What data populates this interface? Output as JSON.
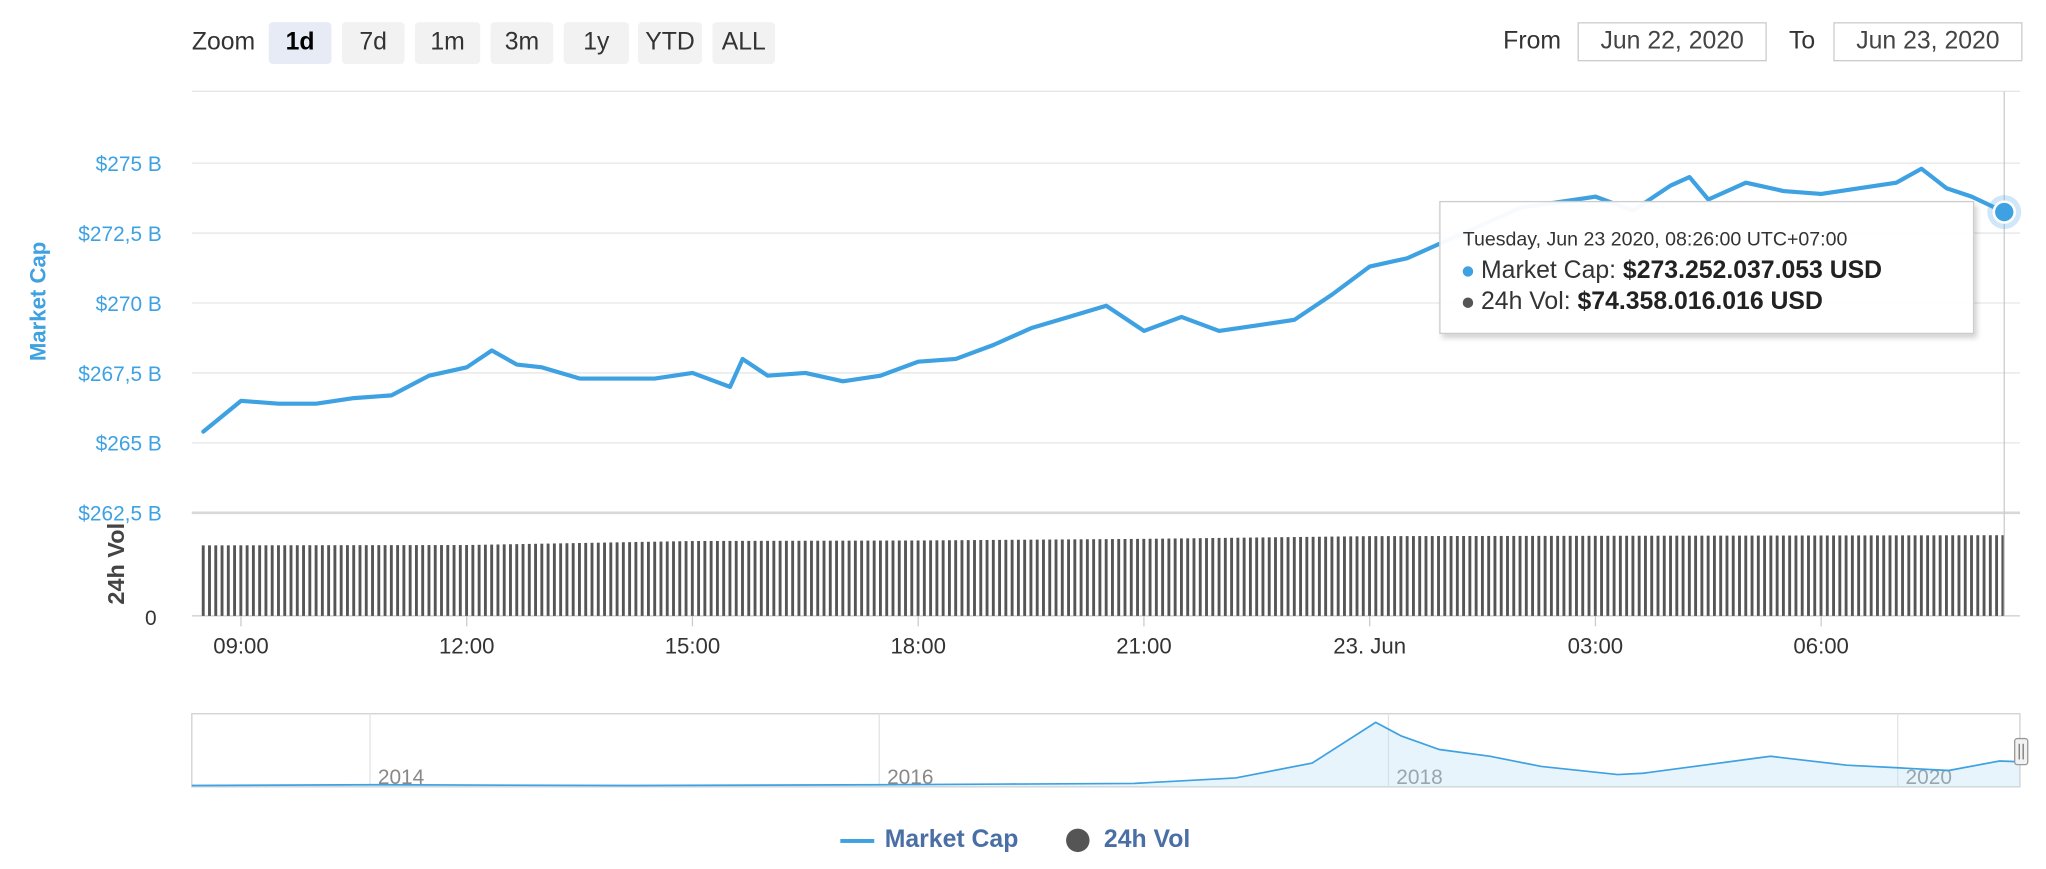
{
  "toolbar": {
    "zoom_label": "Zoom",
    "zoom_buttons": [
      {
        "label": "1d",
        "active": true
      },
      {
        "label": "7d",
        "active": false
      },
      {
        "label": "1m",
        "active": false
      },
      {
        "label": "3m",
        "active": false
      },
      {
        "label": "1y",
        "active": false
      },
      {
        "label": "YTD",
        "active": false
      },
      {
        "label": "ALL",
        "active": false
      }
    ],
    "from_label": "From",
    "from_value": "Jun 22, 2020",
    "to_label": "To",
    "to_value": "Jun 23, 2020"
  },
  "tooltip": {
    "header": "Tuesday, Jun 23 2020, 08:26:00 UTC+07:00",
    "marketcap_label": "Market Cap: ",
    "marketcap_value": "$273.252.037.053 USD",
    "volume_label": "24h Vol: ",
    "volume_value": "$74.358.016.016 USD"
  },
  "legend": {
    "marketcap": "Market Cap",
    "volume": "24h Vol"
  },
  "colors": {
    "marketcap_line": "#3ea1e2",
    "volume_bar": "#555555",
    "axis_label": "#3ea1e2"
  },
  "chart_data": {
    "type": "line",
    "title": "",
    "price_axis": {
      "label": "Market Cap",
      "unit": "USD billions",
      "range": [
        262.5,
        276
      ],
      "tick_values": [
        262.5,
        265,
        267.5,
        270,
        272.5,
        275
      ],
      "tick_labels": [
        "$262,5 B",
        "$265 B",
        "$267,5 B",
        "$270 B",
        "$272,5 B",
        "$275 B"
      ]
    },
    "volume_axis": {
      "label": "24h Vol",
      "tick_labels": [
        "0"
      ]
    },
    "x_axis": {
      "range": [
        "2020-06-22 08:26",
        "2020-06-23 08:26"
      ],
      "ticks": [
        {
          "label": "09:00",
          "time": "2020-06-22 09:00"
        },
        {
          "label": "12:00",
          "time": "2020-06-22 12:00"
        },
        {
          "label": "15:00",
          "time": "2020-06-22 15:00"
        },
        {
          "label": "18:00",
          "time": "2020-06-22 18:00"
        },
        {
          "label": "21:00",
          "time": "2020-06-22 21:00"
        },
        {
          "label": "23. Jun",
          "time": "2020-06-23 00:00"
        },
        {
          "label": "03:00",
          "time": "2020-06-23 03:00"
        },
        {
          "label": "06:00",
          "time": "2020-06-23 06:00"
        }
      ]
    },
    "series": [
      {
        "name": "Market Cap",
        "unit": "USD billions",
        "points": [
          [
            "2020-06-22 08:30",
            265.4
          ],
          [
            "2020-06-22 09:00",
            266.5
          ],
          [
            "2020-06-22 09:30",
            266.4
          ],
          [
            "2020-06-22 10:00",
            266.4
          ],
          [
            "2020-06-22 10:30",
            266.6
          ],
          [
            "2020-06-22 11:00",
            266.7
          ],
          [
            "2020-06-22 11:30",
            267.4
          ],
          [
            "2020-06-22 12:00",
            267.7
          ],
          [
            "2020-06-22 12:20",
            268.3
          ],
          [
            "2020-06-22 12:40",
            267.8
          ],
          [
            "2020-06-22 13:00",
            267.7
          ],
          [
            "2020-06-22 13:30",
            267.3
          ],
          [
            "2020-06-22 14:00",
            267.3
          ],
          [
            "2020-06-22 14:30",
            267.3
          ],
          [
            "2020-06-22 15:00",
            267.5
          ],
          [
            "2020-06-22 15:30",
            267.0
          ],
          [
            "2020-06-22 15:40",
            268.0
          ],
          [
            "2020-06-22 16:00",
            267.4
          ],
          [
            "2020-06-22 16:30",
            267.5
          ],
          [
            "2020-06-22 17:00",
            267.2
          ],
          [
            "2020-06-22 17:30",
            267.4
          ],
          [
            "2020-06-22 18:00",
            267.9
          ],
          [
            "2020-06-22 18:30",
            268.0
          ],
          [
            "2020-06-22 19:00",
            268.5
          ],
          [
            "2020-06-22 19:30",
            269.1
          ],
          [
            "2020-06-22 20:00",
            269.5
          ],
          [
            "2020-06-22 20:30",
            269.9
          ],
          [
            "2020-06-22 21:00",
            269.0
          ],
          [
            "2020-06-22 21:30",
            269.5
          ],
          [
            "2020-06-22 22:00",
            269.0
          ],
          [
            "2020-06-22 22:30",
            269.2
          ],
          [
            "2020-06-22 23:00",
            269.4
          ],
          [
            "2020-06-22 23:30",
            270.3
          ],
          [
            "2020-06-23 00:00",
            271.3
          ],
          [
            "2020-06-23 00:30",
            271.6
          ],
          [
            "2020-06-23 01:00",
            272.2
          ],
          [
            "2020-06-23 01:30",
            272.8
          ],
          [
            "2020-06-23 02:00",
            273.4
          ],
          [
            "2020-06-23 02:30",
            273.6
          ],
          [
            "2020-06-23 03:00",
            273.8
          ],
          [
            "2020-06-23 03:30",
            273.3
          ],
          [
            "2020-06-23 04:00",
            274.2
          ],
          [
            "2020-06-23 04:15",
            274.5
          ],
          [
            "2020-06-23 04:30",
            273.7
          ],
          [
            "2020-06-23 05:00",
            274.3
          ],
          [
            "2020-06-23 05:30",
            274.0
          ],
          [
            "2020-06-23 06:00",
            273.9
          ],
          [
            "2020-06-23 06:30",
            274.1
          ],
          [
            "2020-06-23 07:00",
            274.3
          ],
          [
            "2020-06-23 07:20",
            274.8
          ],
          [
            "2020-06-23 07:40",
            274.1
          ],
          [
            "2020-06-23 08:00",
            273.8
          ],
          [
            "2020-06-23 08:26",
            273.25
          ]
        ]
      },
      {
        "name": "24h Vol",
        "type": "bar",
        "unit": "USD billions",
        "points": [
          [
            "2020-06-22 08:30",
            65.0
          ],
          [
            "2020-06-22 12:00",
            65.3
          ],
          [
            "2020-06-22 15:00",
            69.0
          ],
          [
            "2020-06-22 18:00",
            69.5
          ],
          [
            "2020-06-22 21:00",
            71.0
          ],
          [
            "2020-06-23 00:00",
            73.5
          ],
          [
            "2020-06-23 03:00",
            73.8
          ],
          [
            "2020-06-23 06:00",
            74.1
          ],
          [
            "2020-06-23 08:26",
            74.36
          ]
        ]
      }
    ],
    "navigator": {
      "tick_labels": [
        "2014",
        "2016",
        "2018",
        "2020"
      ],
      "points": [
        [
          2013.3,
          0.02
        ],
        [
          2014.0,
          0.03
        ],
        [
          2015.0,
          0.02
        ],
        [
          2016.0,
          0.03
        ],
        [
          2016.5,
          0.04
        ],
        [
          2017.0,
          0.05
        ],
        [
          2017.4,
          0.13
        ],
        [
          2017.7,
          0.35
        ],
        [
          2017.95,
          0.95
        ],
        [
          2018.05,
          0.75
        ],
        [
          2018.2,
          0.55
        ],
        [
          2018.4,
          0.45
        ],
        [
          2018.6,
          0.3
        ],
        [
          2018.9,
          0.18
        ],
        [
          2019.0,
          0.2
        ],
        [
          2019.5,
          0.45
        ],
        [
          2019.8,
          0.32
        ],
        [
          2020.0,
          0.28
        ],
        [
          2020.2,
          0.24
        ],
        [
          2020.4,
          0.38
        ],
        [
          2020.48,
          0.37
        ]
      ]
    }
  }
}
